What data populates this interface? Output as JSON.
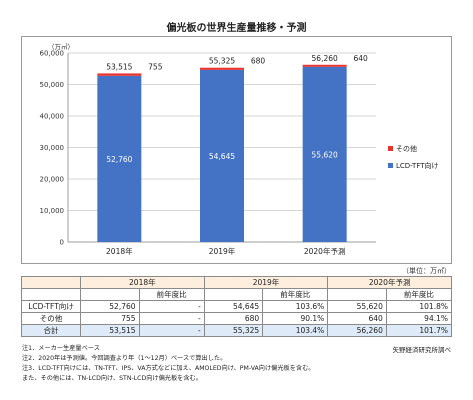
{
  "title": "偏光板の世界生産量推移・予測",
  "chart_data": {
    "type": "bar",
    "stacked": true,
    "title": "偏光板の世界生産量推移・予測",
    "ylabel": "（万㎡）",
    "ylim": [
      0,
      60000
    ],
    "yticks": [
      0,
      10000,
      20000,
      30000,
      40000,
      50000,
      60000
    ],
    "ytick_labels": [
      "0",
      "10,000",
      "20,000",
      "30,000",
      "40,000",
      "50,000",
      "60,000"
    ],
    "grid": true,
    "legend": "right",
    "categories": [
      "2018年",
      "2019年",
      "2020年予測"
    ],
    "series": [
      {
        "name": "LCD-TFT向け",
        "values": [
          52760,
          54645,
          55620
        ],
        "color": "#4472c4",
        "labels": [
          "52,760",
          "54,645",
          "55,620"
        ]
      },
      {
        "name": "その他",
        "values": [
          755,
          680,
          640
        ],
        "color": "#e8332e",
        "labels": [
          "755",
          "680",
          "640"
        ]
      }
    ],
    "totals": [
      53515,
      55325,
      56260
    ],
    "total_labels": [
      "53,515",
      "55,325",
      "56,260"
    ]
  },
  "unit_note": "（単位：万㎡）",
  "table": {
    "years": [
      "2018年",
      "2019年",
      "2020年予測"
    ],
    "yoy_header": "前年度比",
    "rows": [
      {
        "label": "LCD-TFT向け",
        "cells": [
          "52,760",
          "-",
          "54,645",
          "103.6%",
          "55,620",
          "101.8%"
        ]
      },
      {
        "label": "その他",
        "cells": [
          "755",
          "-",
          "680",
          "90.1%",
          "640",
          "94.1%"
        ]
      },
      {
        "label": "合計",
        "cells": [
          "53,515",
          "-",
          "55,325",
          "103.4%",
          "56,260",
          "101.7%"
        ]
      }
    ]
  },
  "notes": [
    "注1．メーカー生産量ベース",
    "注2．2020年は予測値。今回調査より年（1～12月）ベースで算出した。",
    "注3．LCD-TFT向けには、TN-TFT、IPS、VA方式などに加え、AMOLED向け、PM-VA向け偏光板を含む。",
    "また、その他には、TN-LCD向け、STN-LCD向け偏光板を含む。"
  ],
  "source": "矢野経済研究所調べ"
}
